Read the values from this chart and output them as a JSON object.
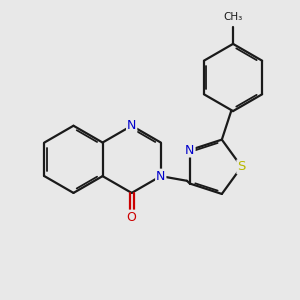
{
  "bg_color": "#e8e8e8",
  "bond_color": "#1a1a1a",
  "N_color": "#0000cc",
  "O_color": "#cc0000",
  "S_color": "#b8b800",
  "lw": 1.6,
  "lw_inner": 1.3,
  "figsize": [
    3.0,
    3.0
  ],
  "dpi": 100,
  "bl": 0.36,
  "font_size": 9.0,
  "xlim": [
    -0.1,
    3.1
  ],
  "ylim": [
    0.2,
    3.1
  ]
}
